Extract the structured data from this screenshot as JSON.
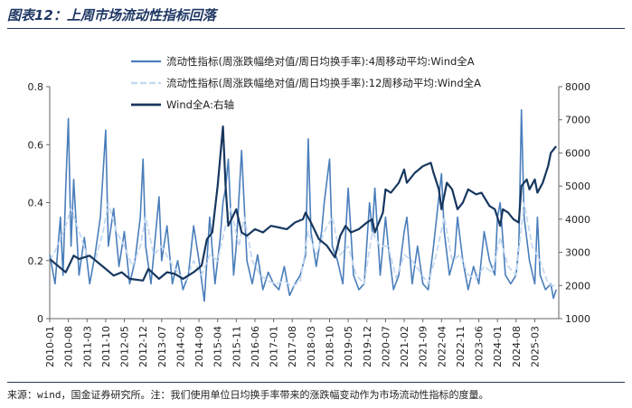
{
  "header": {
    "title": "图表12：上周市场流动性指标回落"
  },
  "footer": {
    "source": "来源：wind，国金证券研究所。注：我们使用单位日均换手率带来的涨跌幅变动作为市场流动性指标的度量。"
  },
  "colors": {
    "ma4": "#4a7ebb",
    "ma12": "#c5d9f1",
    "wind": "#17375e",
    "axis": "#666666",
    "title": "#1f3864"
  },
  "chart_data": {
    "type": "line",
    "left_axis": {
      "ylim": [
        0,
        0.8
      ],
      "ticks": [
        "0",
        "0.2",
        "0.4",
        "0.6",
        "0.8"
      ]
    },
    "right_axis": {
      "ylim": [
        1000,
        8000
      ],
      "ticks": [
        "1000",
        "2000",
        "3000",
        "4000",
        "5000",
        "6000",
        "7000",
        "8000"
      ]
    },
    "x_range": [
      "2010-01",
      "2025-12"
    ],
    "x_ticks": [
      "2010-01",
      "2010-08",
      "2011-03",
      "2011-10",
      "2012-05",
      "2012-12",
      "2013-07",
      "2014-02",
      "2014-09",
      "2015-04",
      "2015-11",
      "2016-06",
      "2017-01",
      "2017-08",
      "2018-03",
      "2018-10",
      "2019-05",
      "2019-12",
      "2020-07",
      "2021-02",
      "2021-09",
      "2022-04",
      "2022-11",
      "2023-06",
      "2024-01",
      "2024-08",
      "2025-03"
    ],
    "legend": {
      "placement": "top"
    },
    "series": [
      {
        "name": "流动性指标(周涨跌幅绝对值/周日均换手率):4周移动平均:Wind全A",
        "axis": "left",
        "style": "solid",
        "points": [
          [
            "2010-01",
            0.22
          ],
          [
            "2010-03",
            0.12
          ],
          [
            "2010-05",
            0.35
          ],
          [
            "2010-06",
            0.15
          ],
          [
            "2010-07",
            0.45
          ],
          [
            "2010-08",
            0.69
          ],
          [
            "2010-09",
            0.25
          ],
          [
            "2010-10",
            0.48
          ],
          [
            "2010-12",
            0.15
          ],
          [
            "2011-02",
            0.28
          ],
          [
            "2011-04",
            0.12
          ],
          [
            "2011-06",
            0.22
          ],
          [
            "2011-08",
            0.35
          ],
          [
            "2011-10",
            0.65
          ],
          [
            "2011-11",
            0.25
          ],
          [
            "2012-01",
            0.38
          ],
          [
            "2012-03",
            0.18
          ],
          [
            "2012-05",
            0.3
          ],
          [
            "2012-07",
            0.12
          ],
          [
            "2012-09",
            0.2
          ],
          [
            "2012-11",
            0.35
          ],
          [
            "2012-12",
            0.55
          ],
          [
            "2013-01",
            0.25
          ],
          [
            "2013-03",
            0.12
          ],
          [
            "2013-06",
            0.42
          ],
          [
            "2013-07",
            0.2
          ],
          [
            "2013-09",
            0.32
          ],
          [
            "2013-11",
            0.12
          ],
          [
            "2014-01",
            0.2
          ],
          [
            "2014-03",
            0.1
          ],
          [
            "2014-05",
            0.15
          ],
          [
            "2014-07",
            0.32
          ],
          [
            "2014-09",
            0.2
          ],
          [
            "2014-11",
            0.06
          ],
          [
            "2015-01",
            0.35
          ],
          [
            "2015-03",
            0.12
          ],
          [
            "2015-05",
            0.28
          ],
          [
            "2015-06",
            0.4
          ],
          [
            "2015-07",
            0.45
          ],
          [
            "2015-08",
            0.55
          ],
          [
            "2015-09",
            0.35
          ],
          [
            "2015-10",
            0.15
          ],
          [
            "2015-11",
            0.25
          ],
          [
            "2016-01",
            0.58
          ],
          [
            "2016-03",
            0.2
          ],
          [
            "2016-05",
            0.12
          ],
          [
            "2016-07",
            0.22
          ],
          [
            "2016-09",
            0.1
          ],
          [
            "2016-11",
            0.16
          ],
          [
            "2017-01",
            0.12
          ],
          [
            "2017-03",
            0.1
          ],
          [
            "2017-05",
            0.18
          ],
          [
            "2017-07",
            0.08
          ],
          [
            "2017-09",
            0.12
          ],
          [
            "2017-11",
            0.15
          ],
          [
            "2018-01",
            0.22
          ],
          [
            "2018-02",
            0.62
          ],
          [
            "2018-03",
            0.3
          ],
          [
            "2018-05",
            0.18
          ],
          [
            "2018-07",
            0.3
          ],
          [
            "2018-08",
            0.4
          ],
          [
            "2018-10",
            0.55
          ],
          [
            "2018-11",
            0.25
          ],
          [
            "2019-01",
            0.2
          ],
          [
            "2019-03",
            0.12
          ],
          [
            "2019-05",
            0.45
          ],
          [
            "2019-07",
            0.15
          ],
          [
            "2019-09",
            0.1
          ],
          [
            "2019-11",
            0.12
          ],
          [
            "2020-01",
            0.4
          ],
          [
            "2020-02",
            0.3
          ],
          [
            "2020-03",
            0.45
          ],
          [
            "2020-05",
            0.15
          ],
          [
            "2020-07",
            0.35
          ],
          [
            "2020-08",
            0.25
          ],
          [
            "2020-10",
            0.1
          ],
          [
            "2020-12",
            0.15
          ],
          [
            "2021-02",
            0.3
          ],
          [
            "2021-03",
            0.35
          ],
          [
            "2021-05",
            0.12
          ],
          [
            "2021-07",
            0.25
          ],
          [
            "2021-09",
            0.12
          ],
          [
            "2021-11",
            0.1
          ],
          [
            "2022-01",
            0.25
          ],
          [
            "2022-03",
            0.42
          ],
          [
            "2022-04",
            0.5
          ],
          [
            "2022-05",
            0.3
          ],
          [
            "2022-07",
            0.15
          ],
          [
            "2022-09",
            0.22
          ],
          [
            "2022-10",
            0.35
          ],
          [
            "2022-12",
            0.2
          ],
          [
            "2023-02",
            0.1
          ],
          [
            "2023-04",
            0.18
          ],
          [
            "2023-06",
            0.12
          ],
          [
            "2023-08",
            0.3
          ],
          [
            "2023-10",
            0.2
          ],
          [
            "2023-12",
            0.15
          ],
          [
            "2024-01",
            0.35
          ],
          [
            "2024-02",
            0.4
          ],
          [
            "2024-04",
            0.15
          ],
          [
            "2024-06",
            0.12
          ],
          [
            "2024-08",
            0.15
          ],
          [
            "2024-09",
            0.25
          ],
          [
            "2024-10",
            0.72
          ],
          [
            "2024-11",
            0.35
          ],
          [
            "2025-01",
            0.2
          ],
          [
            "2025-03",
            0.12
          ],
          [
            "2025-04",
            0.35
          ],
          [
            "2025-05",
            0.15
          ],
          [
            "2025-07",
            0.1
          ],
          [
            "2025-09",
            0.12
          ],
          [
            "2025-10",
            0.07
          ],
          [
            "2025-11",
            0.1
          ]
        ]
      },
      {
        "name": "流动性指标(周涨跌幅绝对值/周日均换手率):12周移动平均:Wind全A",
        "axis": "left",
        "style": "dashed",
        "points": [
          [
            "2010-01",
            0.2
          ],
          [
            "2010-04",
            0.25
          ],
          [
            "2010-07",
            0.32
          ],
          [
            "2010-09",
            0.38
          ],
          [
            "2010-12",
            0.3
          ],
          [
            "2011-03",
            0.22
          ],
          [
            "2011-06",
            0.2
          ],
          [
            "2011-09",
            0.3
          ],
          [
            "2011-11",
            0.4
          ],
          [
            "2012-02",
            0.3
          ],
          [
            "2012-05",
            0.25
          ],
          [
            "2012-08",
            0.18
          ],
          [
            "2012-11",
            0.25
          ],
          [
            "2013-01",
            0.35
          ],
          [
            "2013-04",
            0.22
          ],
          [
            "2013-07",
            0.25
          ],
          [
            "2013-10",
            0.2
          ],
          [
            "2014-01",
            0.16
          ],
          [
            "2014-04",
            0.13
          ],
          [
            "2014-07",
            0.2
          ],
          [
            "2014-10",
            0.15
          ],
          [
            "2015-01",
            0.22
          ],
          [
            "2015-04",
            0.2
          ],
          [
            "2015-07",
            0.32
          ],
          [
            "2015-09",
            0.38
          ],
          [
            "2015-12",
            0.25
          ],
          [
            "2016-02",
            0.35
          ],
          [
            "2016-05",
            0.2
          ],
          [
            "2016-08",
            0.15
          ],
          [
            "2016-11",
            0.13
          ],
          [
            "2017-02",
            0.12
          ],
          [
            "2017-05",
            0.13
          ],
          [
            "2017-08",
            0.11
          ],
          [
            "2017-11",
            0.13
          ],
          [
            "2018-02",
            0.3
          ],
          [
            "2018-05",
            0.22
          ],
          [
            "2018-08",
            0.3
          ],
          [
            "2018-11",
            0.35
          ],
          [
            "2019-02",
            0.22
          ],
          [
            "2019-05",
            0.25
          ],
          [
            "2019-08",
            0.15
          ],
          [
            "2019-11",
            0.12
          ],
          [
            "2020-02",
            0.3
          ],
          [
            "2020-05",
            0.25
          ],
          [
            "2020-08",
            0.25
          ],
          [
            "2020-11",
            0.14
          ],
          [
            "2021-02",
            0.22
          ],
          [
            "2021-05",
            0.2
          ],
          [
            "2021-08",
            0.16
          ],
          [
            "2021-11",
            0.12
          ],
          [
            "2022-02",
            0.22
          ],
          [
            "2022-05",
            0.35
          ],
          [
            "2022-08",
            0.2
          ],
          [
            "2022-11",
            0.22
          ],
          [
            "2023-02",
            0.15
          ],
          [
            "2023-05",
            0.14
          ],
          [
            "2023-08",
            0.18
          ],
          [
            "2023-11",
            0.16
          ],
          [
            "2024-02",
            0.28
          ],
          [
            "2024-05",
            0.18
          ],
          [
            "2024-08",
            0.15
          ],
          [
            "2024-11",
            0.4
          ],
          [
            "2025-02",
            0.25
          ],
          [
            "2025-05",
            0.2
          ],
          [
            "2025-08",
            0.12
          ],
          [
            "2025-11",
            0.11
          ]
        ]
      },
      {
        "name": "Wind全A:右轴",
        "axis": "right",
        "style": "solid-bold",
        "points": [
          [
            "2010-01",
            2800
          ],
          [
            "2010-04",
            2600
          ],
          [
            "2010-07",
            2400
          ],
          [
            "2010-10",
            2900
          ],
          [
            "2010-12",
            2800
          ],
          [
            "2011-04",
            2900
          ],
          [
            "2011-07",
            2700
          ],
          [
            "2011-10",
            2500
          ],
          [
            "2012-01",
            2300
          ],
          [
            "2012-04",
            2400
          ],
          [
            "2012-07",
            2200
          ],
          [
            "2012-12",
            2150
          ],
          [
            "2013-02",
            2500
          ],
          [
            "2013-06",
            2200
          ],
          [
            "2013-09",
            2400
          ],
          [
            "2013-12",
            2350
          ],
          [
            "2014-03",
            2200
          ],
          [
            "2014-07",
            2400
          ],
          [
            "2014-10",
            2600
          ],
          [
            "2014-12",
            3400
          ],
          [
            "2015-02",
            3600
          ],
          [
            "2015-04",
            5000
          ],
          [
            "2015-06",
            6800
          ],
          [
            "2015-07",
            5000
          ],
          [
            "2015-08",
            3800
          ],
          [
            "2015-11",
            4300
          ],
          [
            "2016-01",
            3600
          ],
          [
            "2016-03",
            3500
          ],
          [
            "2016-06",
            3700
          ],
          [
            "2016-09",
            3600
          ],
          [
            "2016-12",
            3800
          ],
          [
            "2017-03",
            3750
          ],
          [
            "2017-06",
            3700
          ],
          [
            "2017-09",
            3900
          ],
          [
            "2017-12",
            4000
          ],
          [
            "2018-01",
            4200
          ],
          [
            "2018-03",
            3900
          ],
          [
            "2018-06",
            3400
          ],
          [
            "2018-09",
            3200
          ],
          [
            "2018-12",
            2850
          ],
          [
            "2019-02",
            3500
          ],
          [
            "2019-04",
            3800
          ],
          [
            "2019-06",
            3600
          ],
          [
            "2019-09",
            3700
          ],
          [
            "2019-12",
            3900
          ],
          [
            "2020-02",
            4000
          ],
          [
            "2020-03",
            3600
          ],
          [
            "2020-06",
            4200
          ],
          [
            "2020-07",
            4900
          ],
          [
            "2020-09",
            4800
          ],
          [
            "2020-12",
            5100
          ],
          [
            "2021-02",
            5500
          ],
          [
            "2021-03",
            5100
          ],
          [
            "2021-06",
            5400
          ],
          [
            "2021-09",
            5600
          ],
          [
            "2021-12",
            5700
          ],
          [
            "2022-01",
            5400
          ],
          [
            "2022-03",
            4900
          ],
          [
            "2022-04",
            4300
          ],
          [
            "2022-06",
            5100
          ],
          [
            "2022-08",
            4900
          ],
          [
            "2022-10",
            4300
          ],
          [
            "2022-12",
            4500
          ],
          [
            "2023-02",
            4900
          ],
          [
            "2023-05",
            4750
          ],
          [
            "2023-07",
            4800
          ],
          [
            "2023-10",
            4400
          ],
          [
            "2023-12",
            4300
          ],
          [
            "2024-02",
            3800
          ],
          [
            "2024-03",
            4300
          ],
          [
            "2024-05",
            4200
          ],
          [
            "2024-07",
            4000
          ],
          [
            "2024-09",
            3900
          ],
          [
            "2024-10",
            5000
          ],
          [
            "2024-12",
            5200
          ],
          [
            "2025-01",
            4900
          ],
          [
            "2025-03",
            5200
          ],
          [
            "2025-04",
            4800
          ],
          [
            "2025-06",
            5100
          ],
          [
            "2025-08",
            5600
          ],
          [
            "2025-09",
            6000
          ],
          [
            "2025-11",
            6200
          ]
        ]
      }
    ]
  }
}
